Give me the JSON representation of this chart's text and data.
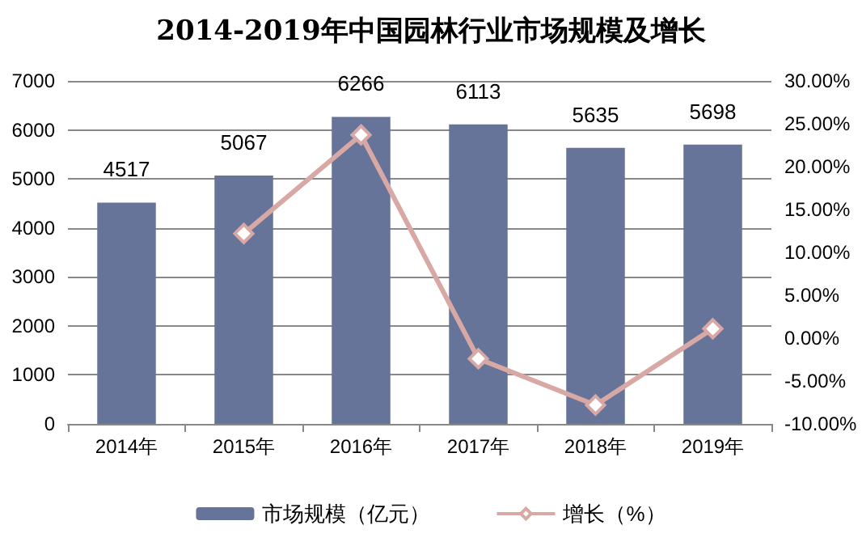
{
  "chart_data": {
    "type": "bar",
    "title": "2014-2019年中国园林行业市场规模及增长",
    "categories": [
      "2014年",
      "2015年",
      "2016年",
      "2017年",
      "2018年",
      "2019年"
    ],
    "series": [
      {
        "name": "市场规模（亿元）",
        "color": "#67749a",
        "values": [
          4517,
          5067,
          6266,
          6113,
          5635,
          5698
        ],
        "data_labels": true
      },
      {
        "name": "增长（%）",
        "type": "line",
        "axis": "y2",
        "color": "#d8a8a5",
        "marker": "diamond",
        "values": [
          null,
          12.2,
          23.7,
          -2.4,
          -7.8,
          1.1
        ]
      }
    ],
    "ylim": [
      0,
      7000
    ],
    "yticks": [
      0,
      1000,
      2000,
      3000,
      4000,
      5000,
      6000,
      7000
    ],
    "y2lim": [
      -10,
      30
    ],
    "y2ticks": [
      {
        "value": -10,
        "label": "-10.00%"
      },
      {
        "value": -5,
        "label": "-5.00%"
      },
      {
        "value": 0,
        "label": "0.00%"
      },
      {
        "value": 5,
        "label": "5.00%"
      },
      {
        "value": 10,
        "label": "10.00%"
      },
      {
        "value": 15,
        "label": "15.00%"
      },
      {
        "value": 20,
        "label": "20.00%"
      },
      {
        "value": 25,
        "label": "25.00%"
      },
      {
        "value": 30,
        "label": "30.00%"
      }
    ],
    "grid": "y",
    "legend": "bottom"
  }
}
